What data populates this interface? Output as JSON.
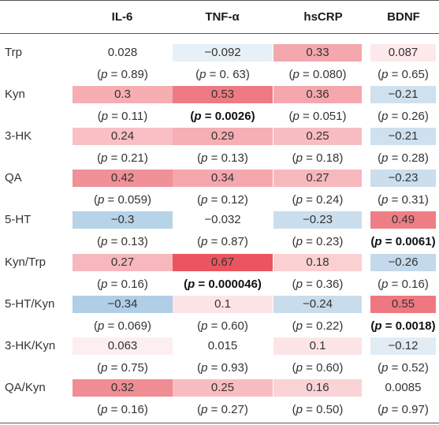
{
  "columns": [
    "IL-6",
    "TNF-α",
    "hsCRP",
    "BDNF"
  ],
  "rows": [
    {
      "label": "Trp",
      "values": [
        "0.028",
        "−0.092",
        "0.33",
        "0.087"
      ],
      "colors": [
        "none",
        "#e6f0f6",
        "#f4a7ad",
        "#fde9ea"
      ],
      "p": [
        "0.89",
        " 0. 63",
        "0.080",
        "0.65"
      ],
      "pbold": [
        false,
        false,
        false,
        false
      ]
    },
    {
      "label": "Kyn",
      "values": [
        "0.3",
        "0.53",
        "0.36",
        "−0.21"
      ],
      "colors": [
        "#f6aeb3",
        "#ee7b83",
        "#f4a7ad",
        "#cfe0ee"
      ],
      "p": [
        "0.11",
        "0.0026",
        "0.051",
        "0.26"
      ],
      "pbold": [
        false,
        true,
        false,
        false
      ]
    },
    {
      "label": "3-HK",
      "values": [
        "0.24",
        "0.29",
        "0.25",
        "−0.21"
      ],
      "colors": [
        "#f8c0c4",
        "#f6afb4",
        "#f8bdc1",
        "#cfe0ee"
      ],
      "p": [
        "0.21",
        "0.13",
        "0.18",
        "0.28"
      ],
      "pbold": [
        false,
        false,
        false,
        false
      ]
    },
    {
      "label": "QA",
      "values": [
        "0.42",
        "0.34",
        "0.27",
        "−0.23"
      ],
      "colors": [
        "#f09097",
        "#f4a7ad",
        "#f7b8bd",
        "#cbdeed"
      ],
      "p": [
        "0.059",
        "0.12",
        "0.24",
        "0.31"
      ],
      "pbold": [
        false,
        false,
        false,
        false
      ]
    },
    {
      "label": "5-HT",
      "values": [
        "−0.3",
        "−0.032",
        "−0.23",
        "0.49"
      ],
      "colors": [
        "#b7d3e8",
        "none",
        "#cbdeed",
        "#ee7e86"
      ],
      "p": [
        "0.13",
        "0.87",
        "0.23",
        "0.0061"
      ],
      "pbold": [
        false,
        false,
        false,
        true
      ]
    },
    {
      "label": "Kyn/Trp",
      "values": [
        "0.27",
        "0.67",
        "0.18",
        "−0.26"
      ],
      "colors": [
        "#f7b8bd",
        "#eb5560",
        "#fad0d3",
        "#c4d9eb"
      ],
      "p": [
        "0.16",
        "0.000046",
        "0.36",
        "0.16"
      ],
      "pbold": [
        false,
        true,
        false,
        false
      ]
    },
    {
      "label": "5-HT/Kyn",
      "values": [
        "−0.34",
        "0.1",
        "−0.24",
        "0.55"
      ],
      "colors": [
        "#b0cee6",
        "#fde5e7",
        "#c8dcec",
        "#ef7880"
      ],
      "p": [
        "0.069",
        "0.60",
        "0.22",
        "0.0018"
      ],
      "pbold": [
        false,
        false,
        false,
        true
      ]
    },
    {
      "label": "3-HK/Kyn",
      "values": [
        "0.063",
        "0.015",
        "0.1",
        "−0.12"
      ],
      "colors": [
        "#fdeeef",
        "none",
        "#fde5e7",
        "#e1ecf5"
      ],
      "p": [
        "0.75",
        "0.93",
        "0.60",
        "0.52"
      ],
      "pbold": [
        false,
        false,
        false,
        false
      ]
    },
    {
      "label": "QA/Kyn",
      "values": [
        "0.32",
        "0.25",
        "0.16",
        "0.0085"
      ],
      "colors": [
        "#f08c93",
        "#f8bdc1",
        "#fad3d6",
        "none"
      ],
      "p": [
        "0.16",
        "0.27",
        "0.50",
        "0.97"
      ],
      "pbold": [
        false,
        false,
        false,
        false
      ]
    }
  ]
}
